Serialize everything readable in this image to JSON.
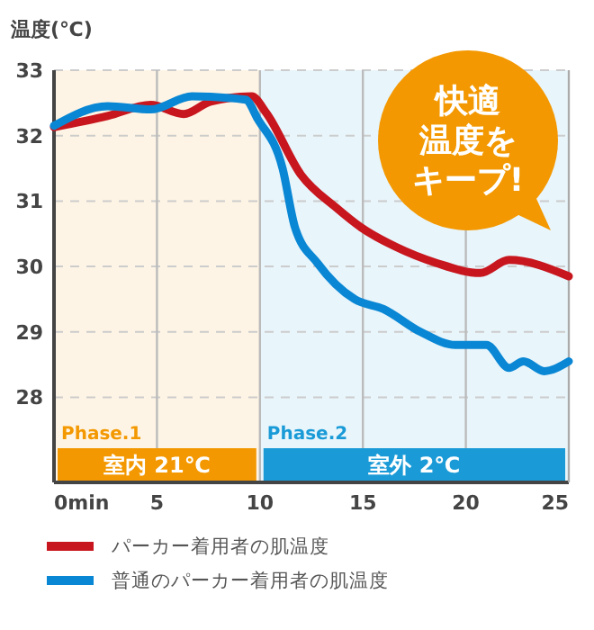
{
  "chart_data": {
    "type": "line",
    "ylabel": "温度(℃)",
    "xlim": [
      0,
      25
    ],
    "ylim": [
      26.7,
      33
    ],
    "xticks": [
      {
        "value": 0,
        "label": "0min"
      },
      5,
      10,
      15,
      20,
      25
    ],
    "yticks": [
      28,
      29,
      30,
      31,
      32,
      33
    ],
    "grid": true,
    "legend": "bottom",
    "line_style": "solid",
    "marker": "none",
    "series": [
      {
        "name": "パーカー着用者の肌温度",
        "color": "#c8161e",
        "x": [
          0,
          2.6,
          4.7,
          6.3,
          7.6,
          9.6,
          10.3,
          12,
          13.7,
          14.9,
          16.6,
          18.6,
          20.7,
          22.1,
          25
        ],
        "values": [
          32.13,
          32.3,
          32.47,
          32.33,
          32.52,
          32.6,
          32.35,
          31.4,
          30.9,
          30.6,
          30.3,
          30.05,
          29.9,
          30.1,
          29.85
        ]
      },
      {
        "name": "普通のパーカー着用者の肌温度",
        "color": "#0a87d4",
        "x": [
          0,
          2.6,
          4.7,
          6.7,
          9.3,
          9.9,
          11.1,
          11.7,
          12.8,
          14.6,
          16,
          17.8,
          19.5,
          21,
          22.1,
          22.8,
          23.8,
          25
        ],
        "values": [
          32.15,
          32.45,
          32.4,
          32.6,
          32.55,
          32.25,
          31.5,
          30.6,
          30.05,
          29.5,
          29.35,
          29,
          28.8,
          28.8,
          28.45,
          28.55,
          28.4,
          28.55
        ]
      }
    ],
    "bands": [
      {
        "axis": "x",
        "from": 0,
        "to": 10,
        "label": "Phase.1",
        "color": "#f39800"
      },
      {
        "axis": "x",
        "from": 10,
        "to": 25,
        "label": "Phase.2",
        "color": "#1a9bd7"
      }
    ],
    "annotations": [
      "室内 21℃",
      "室外 2℃",
      "快適温度をキープ!"
    ]
  }
}
